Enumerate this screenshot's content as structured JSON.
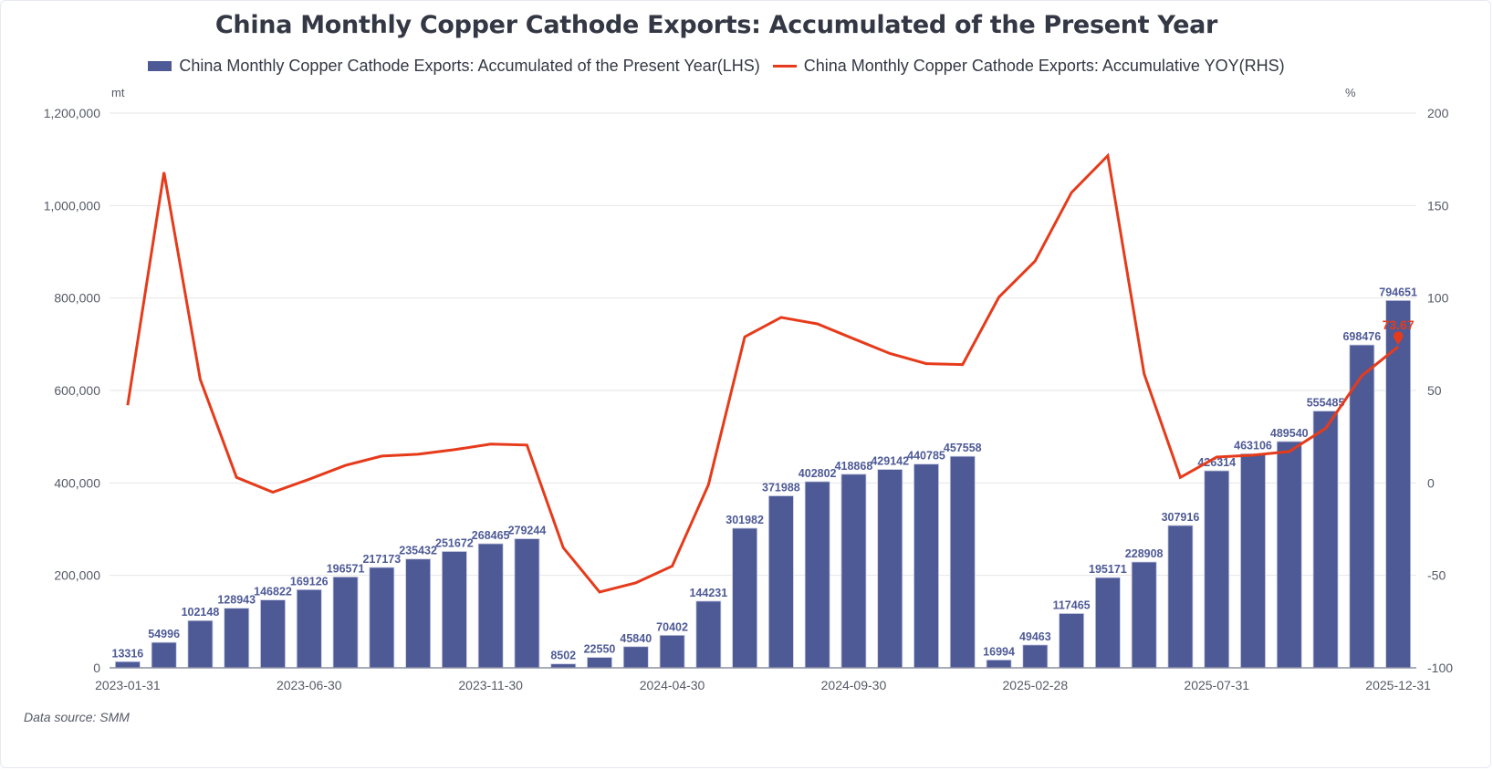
{
  "title": "China Monthly Copper Cathode Exports: Accumulated of the Present Year",
  "legend": [
    {
      "label": "China Monthly Copper Cathode Exports: Accumulated of the Present Year(LHS)",
      "type": "bar",
      "color": "#4e5a96"
    },
    {
      "label": "China Monthly Copper Cathode Exports: Accumulative YOY(RHS)",
      "type": "line",
      "color": "#e63b1b"
    }
  ],
  "left_unit": "mt",
  "right_unit": "%",
  "source": "Data source:  SMM",
  "chart_data": {
    "type": "bar",
    "title": "China Monthly Copper Cathode Exports: Accumulated of the Present Year",
    "xlabel": "",
    "ylabel": "mt",
    "y2label": "%",
    "ylim": [
      0,
      1200000
    ],
    "y2lim": [
      -100,
      200
    ],
    "yticks": [
      "0",
      "200,000",
      "400,000",
      "600,000",
      "800,000",
      "1,000,000",
      "1,200,000"
    ],
    "y2ticks": [
      "-100",
      "-50",
      "0",
      "50",
      "100",
      "150",
      "200"
    ],
    "xtick_labels": [
      {
        "index": 0,
        "label": "2023-01-31"
      },
      {
        "index": 5,
        "label": "2023-06-30"
      },
      {
        "index": 10,
        "label": "2023-11-30"
      },
      {
        "index": 15,
        "label": "2024-04-30"
      },
      {
        "index": 20,
        "label": "2024-09-30"
      },
      {
        "index": 25,
        "label": "2025-02-28"
      },
      {
        "index": 30,
        "label": "2025-07-31"
      },
      {
        "index": 35,
        "label": "2025-12-31"
      }
    ],
    "grid": true,
    "legend_position": "top-center",
    "categories": [
      "2023-01-31",
      "2023-02-28",
      "2023-03-31",
      "2023-04-30",
      "2023-05-31",
      "2023-06-30",
      "2023-07-31",
      "2023-08-31",
      "2023-09-30",
      "2023-10-31",
      "2023-11-30",
      "2023-12-31",
      "2024-01-31",
      "2024-02-29",
      "2024-03-31",
      "2024-04-30",
      "2024-05-31",
      "2024-06-30",
      "2024-07-31",
      "2024-08-31",
      "2024-09-30",
      "2024-10-31",
      "2024-11-30",
      "2024-12-31",
      "2025-01-31",
      "2025-02-28",
      "2025-03-31",
      "2025-04-30",
      "2025-05-31",
      "2025-06-30",
      "2025-07-31",
      "2025-08-31",
      "2025-09-30",
      "2025-10-31",
      "2025-11-30",
      "2025-12-31"
    ],
    "series": [
      {
        "name": "China Monthly Copper Cathode Exports: Accumulated of the Present Year(LHS)",
        "type": "bar",
        "axis": "left",
        "color": "#4e5a96",
        "values": [
          13316,
          54996,
          102148,
          128943,
          146822,
          169126,
          196571,
          217173,
          235432,
          251672,
          268465,
          279244,
          8502,
          22550,
          45840,
          70402,
          144231,
          301982,
          371988,
          402802,
          418868,
          429142,
          440785,
          457558,
          16994,
          49463,
          117465,
          195171,
          228908,
          307916,
          426314,
          463106,
          489540,
          555485,
          698476,
          794651
        ]
      },
      {
        "name": "China Monthly Copper Cathode Exports: Accumulative YOY(RHS)",
        "type": "line",
        "axis": "right",
        "color": "#e63b1b",
        "values": [
          42,
          168,
          56,
          3,
          -5,
          2,
          9.5,
          14.5,
          15.5,
          18,
          21,
          20.5,
          -35,
          -59,
          -54,
          -45,
          -1,
          79,
          89.5,
          86,
          78,
          70,
          64.5,
          64,
          100.5,
          120,
          157,
          177,
          59,
          3,
          14,
          15,
          17,
          29.5,
          58,
          73.67
        ],
        "last_label": "73.67"
      }
    ]
  }
}
